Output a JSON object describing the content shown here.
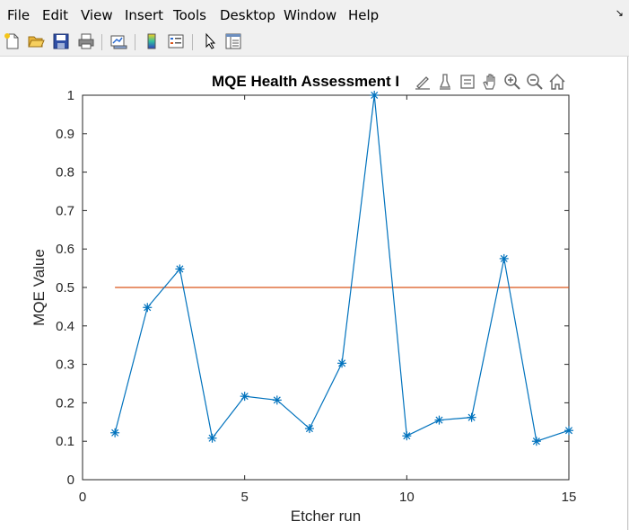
{
  "menu": {
    "items": [
      "File",
      "Edit",
      "View",
      "Insert",
      "Tools",
      "Desktop",
      "Window",
      "Help"
    ],
    "dock_arrow": "↘"
  },
  "toolbar": {
    "buttons": [
      "new-file-icon",
      "open-folder-icon",
      "save-icon",
      "print-icon",
      "link-plot-icon",
      "colorbar-icon",
      "legend-icon",
      "pointer-icon",
      "property-inspector-icon"
    ]
  },
  "axes_toolbar": {
    "buttons": [
      "export-icon",
      "brush-icon",
      "data-tips-icon",
      "pan-icon",
      "zoom-in-icon",
      "zoom-out-icon",
      "home-icon"
    ]
  },
  "chart_data": {
    "type": "line",
    "title": "MQE Health Assessment I",
    "xlabel": "Etcher run",
    "ylabel": "MQE Value",
    "xlim": [
      0,
      15
    ],
    "ylim": [
      0,
      1
    ],
    "xticks": [
      "0",
      "5",
      "10",
      "15"
    ],
    "yticks": [
      "0",
      "0.1",
      "0.2",
      "0.3",
      "0.4",
      "0.5",
      "0.6",
      "0.7",
      "0.8",
      "0.9",
      "1"
    ],
    "grid": false,
    "series": [
      {
        "marker": "asterisk",
        "color": "#0072bd",
        "x": [
          1,
          2,
          3,
          4,
          5,
          6,
          7,
          8,
          9,
          10,
          11,
          12,
          13,
          14,
          15
        ],
        "y": [
          0.122,
          0.448,
          0.548,
          0.108,
          0.217,
          0.207,
          0.133,
          0.303,
          1.0,
          0.114,
          0.155,
          0.162,
          0.575,
          0.1,
          0.128
        ]
      },
      {
        "marker": "none",
        "color": "#d95319",
        "x": [
          1,
          15
        ],
        "y": [
          0.5,
          0.5
        ]
      }
    ]
  }
}
